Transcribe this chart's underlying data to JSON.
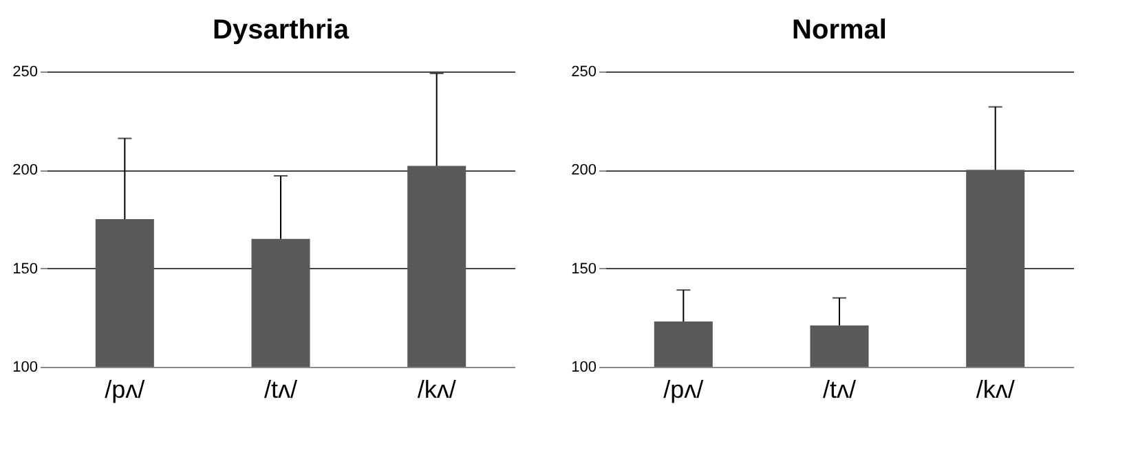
{
  "chart_data": [
    {
      "type": "bar",
      "title": "Dysarthria",
      "categories": [
        "/pʌ/",
        "/tʌ/",
        "/kʌ/"
      ],
      "values": [
        175,
        165,
        202
      ],
      "errors": [
        [
          175,
          216
        ],
        [
          165,
          197
        ],
        [
          202,
          249
        ]
      ],
      "color": "#595959",
      "ylim": [
        100,
        250
      ],
      "yticks": [
        100,
        150,
        200,
        250
      ],
      "grid": "y"
    },
    {
      "type": "bar",
      "title": "Normal",
      "categories": [
        "/pʌ/",
        "/tʌ/",
        "/kʌ/"
      ],
      "values": [
        123,
        121,
        200
      ],
      "errors": [
        [
          123,
          139
        ],
        [
          121,
          135
        ],
        [
          200,
          232
        ]
      ],
      "color": "#595959",
      "ylim": [
        100,
        250
      ],
      "yticks": [
        100,
        150,
        200,
        250
      ],
      "grid": "y"
    }
  ]
}
